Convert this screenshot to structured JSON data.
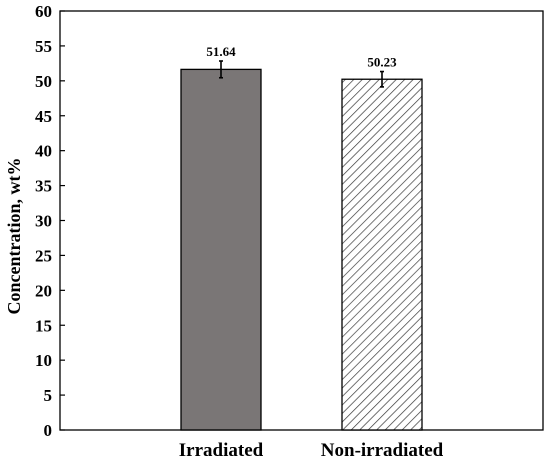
{
  "chart_data": {
    "type": "bar",
    "title": "",
    "xlabel": "",
    "ylabel": "Concentration, wt%",
    "ylim": [
      0,
      60
    ],
    "yticks": [
      0,
      5,
      10,
      15,
      20,
      25,
      30,
      35,
      40,
      45,
      50,
      55,
      60
    ],
    "grid": false,
    "categories": [
      "Irradiated",
      "Non-irradiated"
    ],
    "values": [
      51.64,
      50.23
    ],
    "error": [
      1.2,
      1.1
    ],
    "data_labels": [
      "51.64",
      "50.23"
    ],
    "bar_styles": [
      {
        "fill": "#7a7676",
        "pattern": "solid"
      },
      {
        "fill": "#ffffff",
        "pattern": "diagonal-hatch",
        "hatch_color": "#3a3a3a"
      }
    ]
  }
}
